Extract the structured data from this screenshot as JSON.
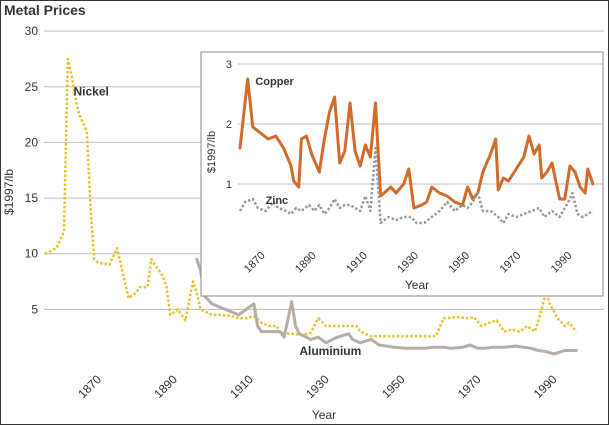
{
  "chart_data": [
    {
      "type": "line",
      "title": "Metal Prices",
      "xlabel": "Year",
      "ylabel": "$1997/lb",
      "xlim": [
        1855,
        2002
      ],
      "ylim": [
        0,
        31
      ],
      "yticks": [
        5,
        10,
        15,
        20,
        25,
        30
      ],
      "xticks": [
        1870,
        1890,
        1910,
        1930,
        1950,
        1970,
        1990
      ],
      "grid": "horizontal",
      "series": [
        {
          "name": "Nickel",
          "color": "#e6c22f",
          "style": "dotted",
          "points": [
            [
              1855,
              10
            ],
            [
              1858,
              10.5
            ],
            [
              1860,
              12
            ],
            [
              1861,
              27.5
            ],
            [
              1862,
              26
            ],
            [
              1863,
              24
            ],
            [
              1864,
              22.5
            ],
            [
              1866,
              21
            ],
            [
              1867,
              14
            ],
            [
              1868,
              9.5
            ],
            [
              1869,
              9.2
            ],
            [
              1872,
              9
            ],
            [
              1874,
              10.5
            ],
            [
              1875,
              9
            ],
            [
              1876,
              7.5
            ],
            [
              1877,
              6
            ],
            [
              1879,
              6.5
            ],
            [
              1880,
              7
            ],
            [
              1882,
              7
            ],
            [
              1883,
              9.5
            ],
            [
              1885,
              8.5
            ],
            [
              1886,
              8
            ],
            [
              1887,
              7
            ],
            [
              1888,
              4.5
            ],
            [
              1890,
              5
            ],
            [
              1892,
              4
            ],
            [
              1894,
              7.5
            ],
            [
              1895,
              6.5
            ],
            [
              1896,
              5
            ],
            [
              1899,
              4.5
            ],
            [
              1901,
              4.5
            ],
            [
              1904,
              4.4
            ],
            [
              1906,
              4.2
            ],
            [
              1908,
              4.2
            ],
            [
              1910,
              4.4
            ],
            [
              1912,
              3.8
            ],
            [
              1914,
              3.5
            ],
            [
              1916,
              3.5
            ],
            [
              1917,
              2.9
            ],
            [
              1920,
              2.8
            ],
            [
              1923,
              2.7
            ],
            [
              1925,
              2.9
            ],
            [
              1927,
              4.2
            ],
            [
              1929,
              3.5
            ],
            [
              1932,
              3.5
            ],
            [
              1935,
              3.5
            ],
            [
              1937,
              3.5
            ],
            [
              1938,
              3
            ],
            [
              1941,
              2.6
            ],
            [
              1945,
              2.6
            ],
            [
              1950,
              2.6
            ],
            [
              1955,
              2.6
            ],
            [
              1958,
              2.6
            ],
            [
              1960,
              4.2
            ],
            [
              1964,
              4.3
            ],
            [
              1966,
              4.2
            ],
            [
              1968,
              4.3
            ],
            [
              1970,
              3.5
            ],
            [
              1972,
              3.8
            ],
            [
              1974,
              4
            ],
            [
              1976,
              3
            ],
            [
              1978,
              3.2
            ],
            [
              1980,
              3
            ],
            [
              1982,
              3.5
            ],
            [
              1984,
              3
            ],
            [
              1985,
              4
            ],
            [
              1987,
              6.5
            ],
            [
              1988,
              5.5
            ],
            [
              1990,
              4.2
            ],
            [
              1992,
              3.5
            ],
            [
              1993,
              3.8
            ],
            [
              1995,
              3
            ]
          ]
        },
        {
          "name": "Aluminium",
          "color": "#b5ada6",
          "style": "solid",
          "points": [
            [
              1895,
              9.5
            ],
            [
              1896,
              8.5
            ],
            [
              1897,
              6.2
            ],
            [
              1899,
              5.5
            ],
            [
              1901,
              5.2
            ],
            [
              1904,
              4.8
            ],
            [
              1906,
              4.5
            ],
            [
              1908,
              5
            ],
            [
              1910,
              5.5
            ],
            [
              1911,
              3.5
            ],
            [
              1912,
              3
            ],
            [
              1914,
              3
            ],
            [
              1917,
              3
            ],
            [
              1918,
              2.5
            ],
            [
              1920,
              5.7
            ],
            [
              1921,
              3.5
            ],
            [
              1922,
              2.8
            ],
            [
              1925,
              2.3
            ],
            [
              1927,
              2.5
            ],
            [
              1929,
              2
            ],
            [
              1932,
              2.5
            ],
            [
              1935,
              2.8
            ],
            [
              1936,
              2.3
            ],
            [
              1938,
              2
            ],
            [
              1941,
              2.3
            ],
            [
              1943,
              1.8
            ],
            [
              1947,
              1.6
            ],
            [
              1950,
              1.5
            ],
            [
              1955,
              1.5
            ],
            [
              1957,
              1.6
            ],
            [
              1960,
              1.6
            ],
            [
              1962,
              1.5
            ],
            [
              1965,
              1.6
            ],
            [
              1967,
              1.8
            ],
            [
              1969,
              1.5
            ],
            [
              1971,
              1.5
            ],
            [
              1973,
              1.6
            ],
            [
              1976,
              1.6
            ],
            [
              1979,
              1.7
            ],
            [
              1981,
              1.6
            ],
            [
              1983,
              1.5
            ],
            [
              1985,
              1.3
            ],
            [
              1987,
              1.2
            ],
            [
              1989,
              1
            ],
            [
              1990,
              1.1
            ],
            [
              1992,
              1.3
            ],
            [
              1995,
              1.3
            ]
          ]
        }
      ]
    },
    {
      "type": "line",
      "xlabel": "Year",
      "ylabel": "$1997/lb",
      "xlim": [
        1860,
        2000
      ],
      "ylim": [
        0,
        3
      ],
      "yticks": [
        1,
        2,
        3
      ],
      "xticks": [
        1870,
        1890,
        1910,
        1930,
        1950,
        1970,
        1990
      ],
      "grid": "horizontal",
      "series": [
        {
          "name": "Copper",
          "color": "#d26b2a",
          "style": "solid",
          "points": [
            [
              1860,
              1.6
            ],
            [
              1863,
              2.75
            ],
            [
              1865,
              1.95
            ],
            [
              1868,
              1.85
            ],
            [
              1871,
              1.75
            ],
            [
              1874,
              1.8
            ],
            [
              1877,
              1.6
            ],
            [
              1880,
              1.3
            ],
            [
              1881,
              1.05
            ],
            [
              1883,
              0.95
            ],
            [
              1884,
              1.75
            ],
            [
              1886,
              1.8
            ],
            [
              1888,
              1.5
            ],
            [
              1891,
              1.2
            ],
            [
              1893,
              1.75
            ],
            [
              1895,
              2.2
            ],
            [
              1897,
              2.45
            ],
            [
              1899,
              1.35
            ],
            [
              1901,
              1.55
            ],
            [
              1903,
              2.35
            ],
            [
              1905,
              1.55
            ],
            [
              1907,
              1.3
            ],
            [
              1909,
              1.65
            ],
            [
              1911,
              1.45
            ],
            [
              1913,
              2.35
            ],
            [
              1915,
              0.8
            ],
            [
              1919,
              0.95
            ],
            [
              1921,
              0.85
            ],
            [
              1924,
              1
            ],
            [
              1926,
              1.25
            ],
            [
              1928,
              0.6
            ],
            [
              1931,
              0.65
            ],
            [
              1933,
              0.7
            ],
            [
              1935,
              0.95
            ],
            [
              1938,
              0.85
            ],
            [
              1941,
              0.8
            ],
            [
              1944,
              0.7
            ],
            [
              1947,
              0.65
            ],
            [
              1949,
              0.95
            ],
            [
              1951,
              0.75
            ],
            [
              1953,
              0.85
            ],
            [
              1955,
              1.2
            ],
            [
              1958,
              1.5
            ],
            [
              1960,
              1.75
            ],
            [
              1961,
              0.9
            ],
            [
              1963,
              1.1
            ],
            [
              1965,
              1.05
            ],
            [
              1968,
              1.25
            ],
            [
              1971,
              1.45
            ],
            [
              1973,
              1.8
            ],
            [
              1975,
              1.5
            ],
            [
              1977,
              1.65
            ],
            [
              1978,
              1.1
            ],
            [
              1980,
              1.2
            ],
            [
              1982,
              1.35
            ],
            [
              1985,
              0.75
            ],
            [
              1987,
              0.75
            ],
            [
              1989,
              1.3
            ],
            [
              1991,
              1.2
            ],
            [
              1993,
              0.95
            ],
            [
              1995,
              0.85
            ],
            [
              1996,
              1.25
            ],
            [
              1998,
              1.0
            ]
          ]
        },
        {
          "name": "Zinc",
          "color": "#999999",
          "style": "dotted",
          "points": [
            [
              1860,
              0.55
            ],
            [
              1862,
              0.7
            ],
            [
              1865,
              0.75
            ],
            [
              1867,
              0.6
            ],
            [
              1870,
              0.55
            ],
            [
              1873,
              0.7
            ],
            [
              1875,
              0.6
            ],
            [
              1878,
              0.55
            ],
            [
              1880,
              0.5
            ],
            [
              1882,
              0.6
            ],
            [
              1884,
              0.55
            ],
            [
              1887,
              0.65
            ],
            [
              1889,
              0.55
            ],
            [
              1891,
              0.65
            ],
            [
              1893,
              0.5
            ],
            [
              1895,
              0.6
            ],
            [
              1897,
              0.75
            ],
            [
              1899,
              0.6
            ],
            [
              1901,
              0.65
            ],
            [
              1903,
              0.65
            ],
            [
              1905,
              0.6
            ],
            [
              1907,
              0.55
            ],
            [
              1909,
              0.8
            ],
            [
              1911,
              0.55
            ],
            [
              1913,
              1.6
            ],
            [
              1915,
              0.35
            ],
            [
              1918,
              0.45
            ],
            [
              1921,
              0.4
            ],
            [
              1924,
              0.45
            ],
            [
              1927,
              0.45
            ],
            [
              1929,
              0.35
            ],
            [
              1932,
              0.35
            ],
            [
              1935,
              0.45
            ],
            [
              1938,
              0.55
            ],
            [
              1941,
              0.7
            ],
            [
              1944,
              0.55
            ],
            [
              1947,
              0.65
            ],
            [
              1949,
              0.6
            ],
            [
              1951,
              0.7
            ],
            [
              1953,
              0.85
            ],
            [
              1955,
              0.55
            ],
            [
              1958,
              0.55
            ],
            [
              1961,
              0.45
            ],
            [
              1963,
              0.35
            ],
            [
              1965,
              0.5
            ],
            [
              1968,
              0.45
            ],
            [
              1971,
              0.5
            ],
            [
              1974,
              0.55
            ],
            [
              1977,
              0.6
            ],
            [
              1979,
              0.45
            ],
            [
              1982,
              0.55
            ],
            [
              1985,
              0.45
            ],
            [
              1987,
              0.6
            ],
            [
              1989,
              0.75
            ],
            [
              1990,
              0.85
            ],
            [
              1992,
              0.5
            ],
            [
              1994,
              0.45
            ],
            [
              1996,
              0.5
            ],
            [
              1998,
              0.55
            ]
          ]
        }
      ]
    }
  ]
}
